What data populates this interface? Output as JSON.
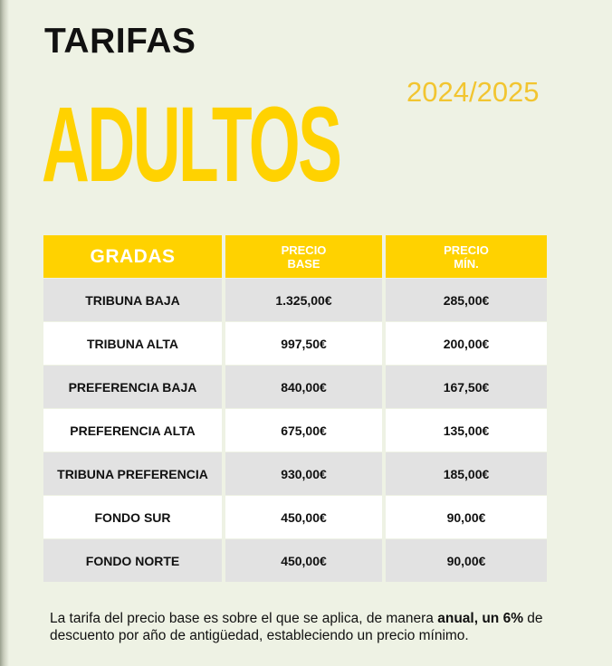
{
  "header": {
    "kicker": "TARIFAS",
    "title": "ADULTOS",
    "season": "2024/2025"
  },
  "colors": {
    "accent_yellow": "#ffd200",
    "season_yellow": "#f2c530",
    "background": "#eef2e4",
    "row_grey": "#e2e2e2",
    "row_white": "#ffffff"
  },
  "table": {
    "headers": {
      "col1": "GRADAS",
      "col2_line1": "PRECIO",
      "col2_line2": "BASE",
      "col3_line1": "PRECIO",
      "col3_line2": "MÍN."
    },
    "rows": [
      {
        "grada": "TRIBUNA BAJA",
        "base": "1.325,00€",
        "min": "285,00€"
      },
      {
        "grada": "TRIBUNA ALTA",
        "base": "997,50€",
        "min": "200,00€"
      },
      {
        "grada": "PREFERENCIA BAJA",
        "base": "840,00€",
        "min": "167,50€"
      },
      {
        "grada": "PREFERENCIA ALTA",
        "base": "675,00€",
        "min": "135,00€"
      },
      {
        "grada": "TRIBUNA PREFERENCIA",
        "base": "930,00€",
        "min": "185,00€"
      },
      {
        "grada": "FONDO SUR",
        "base": "450,00€",
        "min": "90,00€"
      },
      {
        "grada": "FONDO NORTE",
        "base": "450,00€",
        "min": "90,00€"
      }
    ]
  },
  "footnote": {
    "part1": "La tarifa del precio base es sobre el que se aplica, de manera ",
    "bold1": "anual, un 6%",
    "part2": " de descuento por año de antigüedad, estableciendo un precio mínimo."
  }
}
